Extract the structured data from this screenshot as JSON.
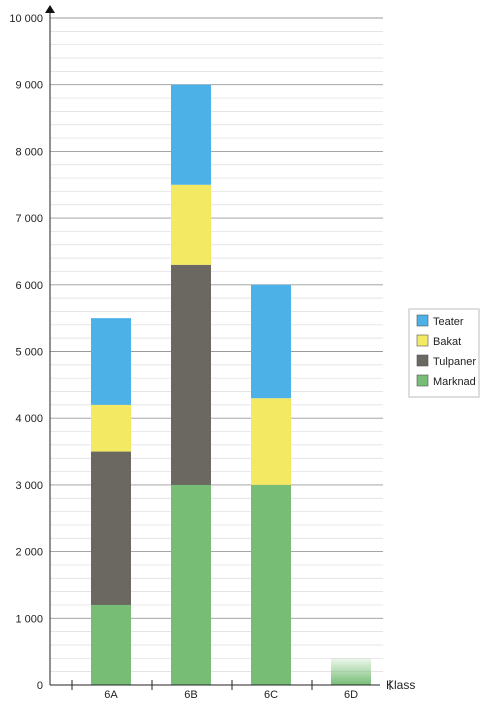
{
  "chart_data": {
    "type": "bar",
    "stacked": true,
    "categories": [
      "6A",
      "6B",
      "6C",
      "6D"
    ],
    "series": [
      {
        "name": "Marknad",
        "color": "#77bd76",
        "values": [
          1200,
          3000,
          3000,
          400
        ]
      },
      {
        "name": "Tulpaner",
        "color": "#6b6862",
        "values": [
          2300,
          3300,
          0,
          0
        ]
      },
      {
        "name": "Bakat",
        "color": "#f4e963",
        "values": [
          700,
          1200,
          1300,
          0
        ]
      },
      {
        "name": "Teater",
        "color": "#4cb1e6",
        "values": [
          1300,
          1500,
          1700,
          0
        ]
      }
    ],
    "y_ticks": [
      "0",
      "1 000",
      "2 000",
      "3 000",
      "4 000",
      "5 000",
      "6 000",
      "7 000",
      "8 000",
      "9 000",
      "10 000"
    ],
    "ylim": [
      0,
      10000
    ],
    "y_major_step": 1000,
    "y_minor_step": 200,
    "xlabel": "Klass",
    "ylabel": "",
    "grid": true,
    "legend_position": "right",
    "legend_order": [
      "Teater",
      "Bakat",
      "Tulpaner",
      "Marknad"
    ],
    "faded_categories": [
      "6D"
    ]
  }
}
